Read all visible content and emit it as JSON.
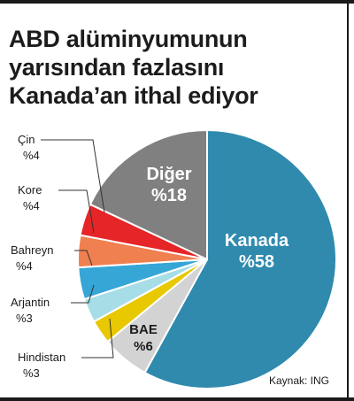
{
  "title_lines": [
    "ABD alüminyumunun",
    "yarısından fazlasını",
    "Kanada’an ithal ediyor"
  ],
  "source": "Kaynak: ING",
  "chart_data": {
    "type": "pie",
    "title": "ABD alüminyumunun yarısından fazlasını Kanada’an ithal ediyor",
    "slices": [
      {
        "label": "Kanada",
        "value": 58,
        "value_label": "%58",
        "color": "#2f8aae",
        "inside": true
      },
      {
        "label": "BAE",
        "value": 6,
        "value_label": "%6",
        "color": "#d3d3d3",
        "inside": true
      },
      {
        "label": "Hindistan",
        "value": 3,
        "value_label": "%3",
        "color": "#e8c800",
        "inside": false
      },
      {
        "label": "Arjantin",
        "value": 3,
        "value_label": "%3",
        "color": "#a7dde6",
        "inside": false
      },
      {
        "label": "Bahreyn",
        "value": 4,
        "value_label": "%4",
        "color": "#36a6d6",
        "inside": false
      },
      {
        "label": "Kore",
        "value": 4,
        "value_label": "%4",
        "color": "#f08050",
        "inside": false
      },
      {
        "label": "Çin",
        "value": 4,
        "value_label": "%4",
        "color": "#e52528",
        "inside": false
      },
      {
        "label": "Diğer",
        "value": 18,
        "value_label": "%18",
        "color": "#808080",
        "inside": true
      }
    ]
  }
}
